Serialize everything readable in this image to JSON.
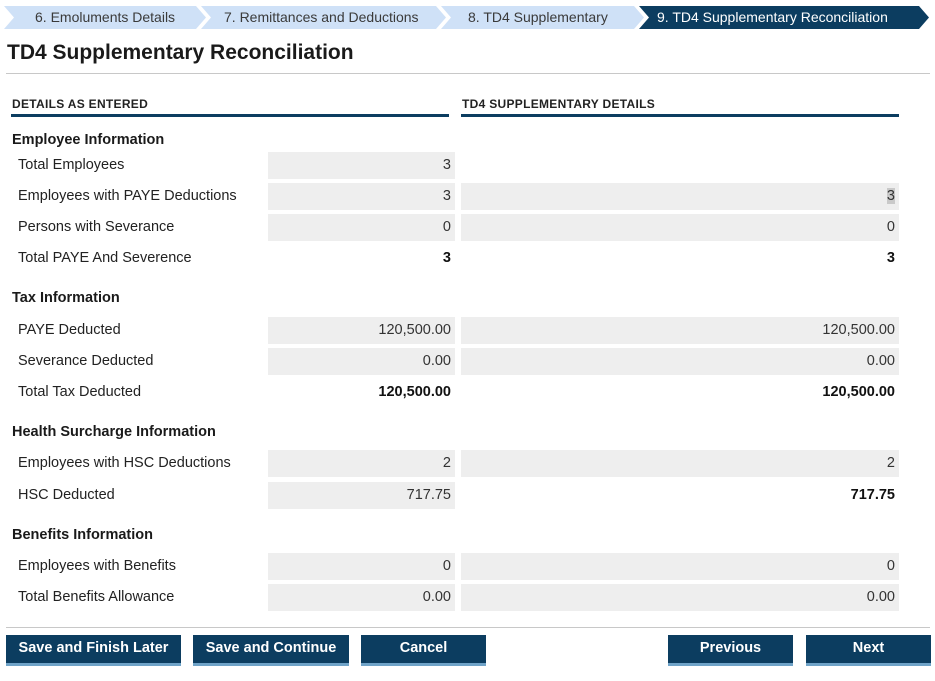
{
  "steps": [
    {
      "label": "6. Emoluments Details"
    },
    {
      "label": "7. Remittances and Deductions"
    },
    {
      "label": "8. TD4 Supplementary"
    },
    {
      "label": "9. TD4 Supplementary Reconciliation"
    }
  ],
  "colors": {
    "accent": "#0c3d60",
    "step_inactive": "#cfe1f7",
    "cell_bg": "#eeeeee",
    "button_underline": "#6fa3c8"
  },
  "page": {
    "title": "TD4 Supplementary Reconciliation"
  },
  "columns": {
    "left": "DETAILS AS ENTERED",
    "right": "TD4 SUPPLEMENTARY DETAILS"
  },
  "employee": {
    "title": "Employee Information",
    "total_employees": {
      "label": "Total Employees",
      "entered": "3"
    },
    "paye_employees": {
      "label": "Employees with PAYE Deductions",
      "entered": "3",
      "supplementary": "3"
    },
    "severance_persons": {
      "label": "Persons with Severance",
      "entered": "0",
      "supplementary": "0"
    },
    "total_paye_severance": {
      "label": "Total PAYE And Severence",
      "entered": "3",
      "supplementary": "3"
    }
  },
  "tax": {
    "title": "Tax Information",
    "paye_deducted": {
      "label": "PAYE Deducted",
      "entered": "120,500.00",
      "supplementary": "120,500.00"
    },
    "severance_deducted": {
      "label": "Severance Deducted",
      "entered": "0.00",
      "supplementary": "0.00"
    },
    "total_tax": {
      "label": "Total Tax Deducted",
      "entered": "120,500.00",
      "supplementary": "120,500.00"
    }
  },
  "health": {
    "title": "Health Surcharge Information",
    "hsc_employees": {
      "label": "Employees with HSC Deductions",
      "entered": "2",
      "supplementary": "2"
    },
    "hsc_deducted": {
      "label": "HSC Deducted",
      "entered": "717.75",
      "supplementary": "717.75"
    }
  },
  "benefits": {
    "title": "Benefits Information",
    "benefit_employees": {
      "label": "Employees with Benefits",
      "entered": "0",
      "supplementary": "0"
    },
    "benefit_allowance": {
      "label": "Total Benefits Allowance",
      "entered": "0.00",
      "supplementary": "0.00"
    }
  },
  "buttons": {
    "save_later": "Save and Finish Later",
    "save_continue": "Save and Continue",
    "cancel": "Cancel",
    "previous": "Previous",
    "next": "Next"
  }
}
